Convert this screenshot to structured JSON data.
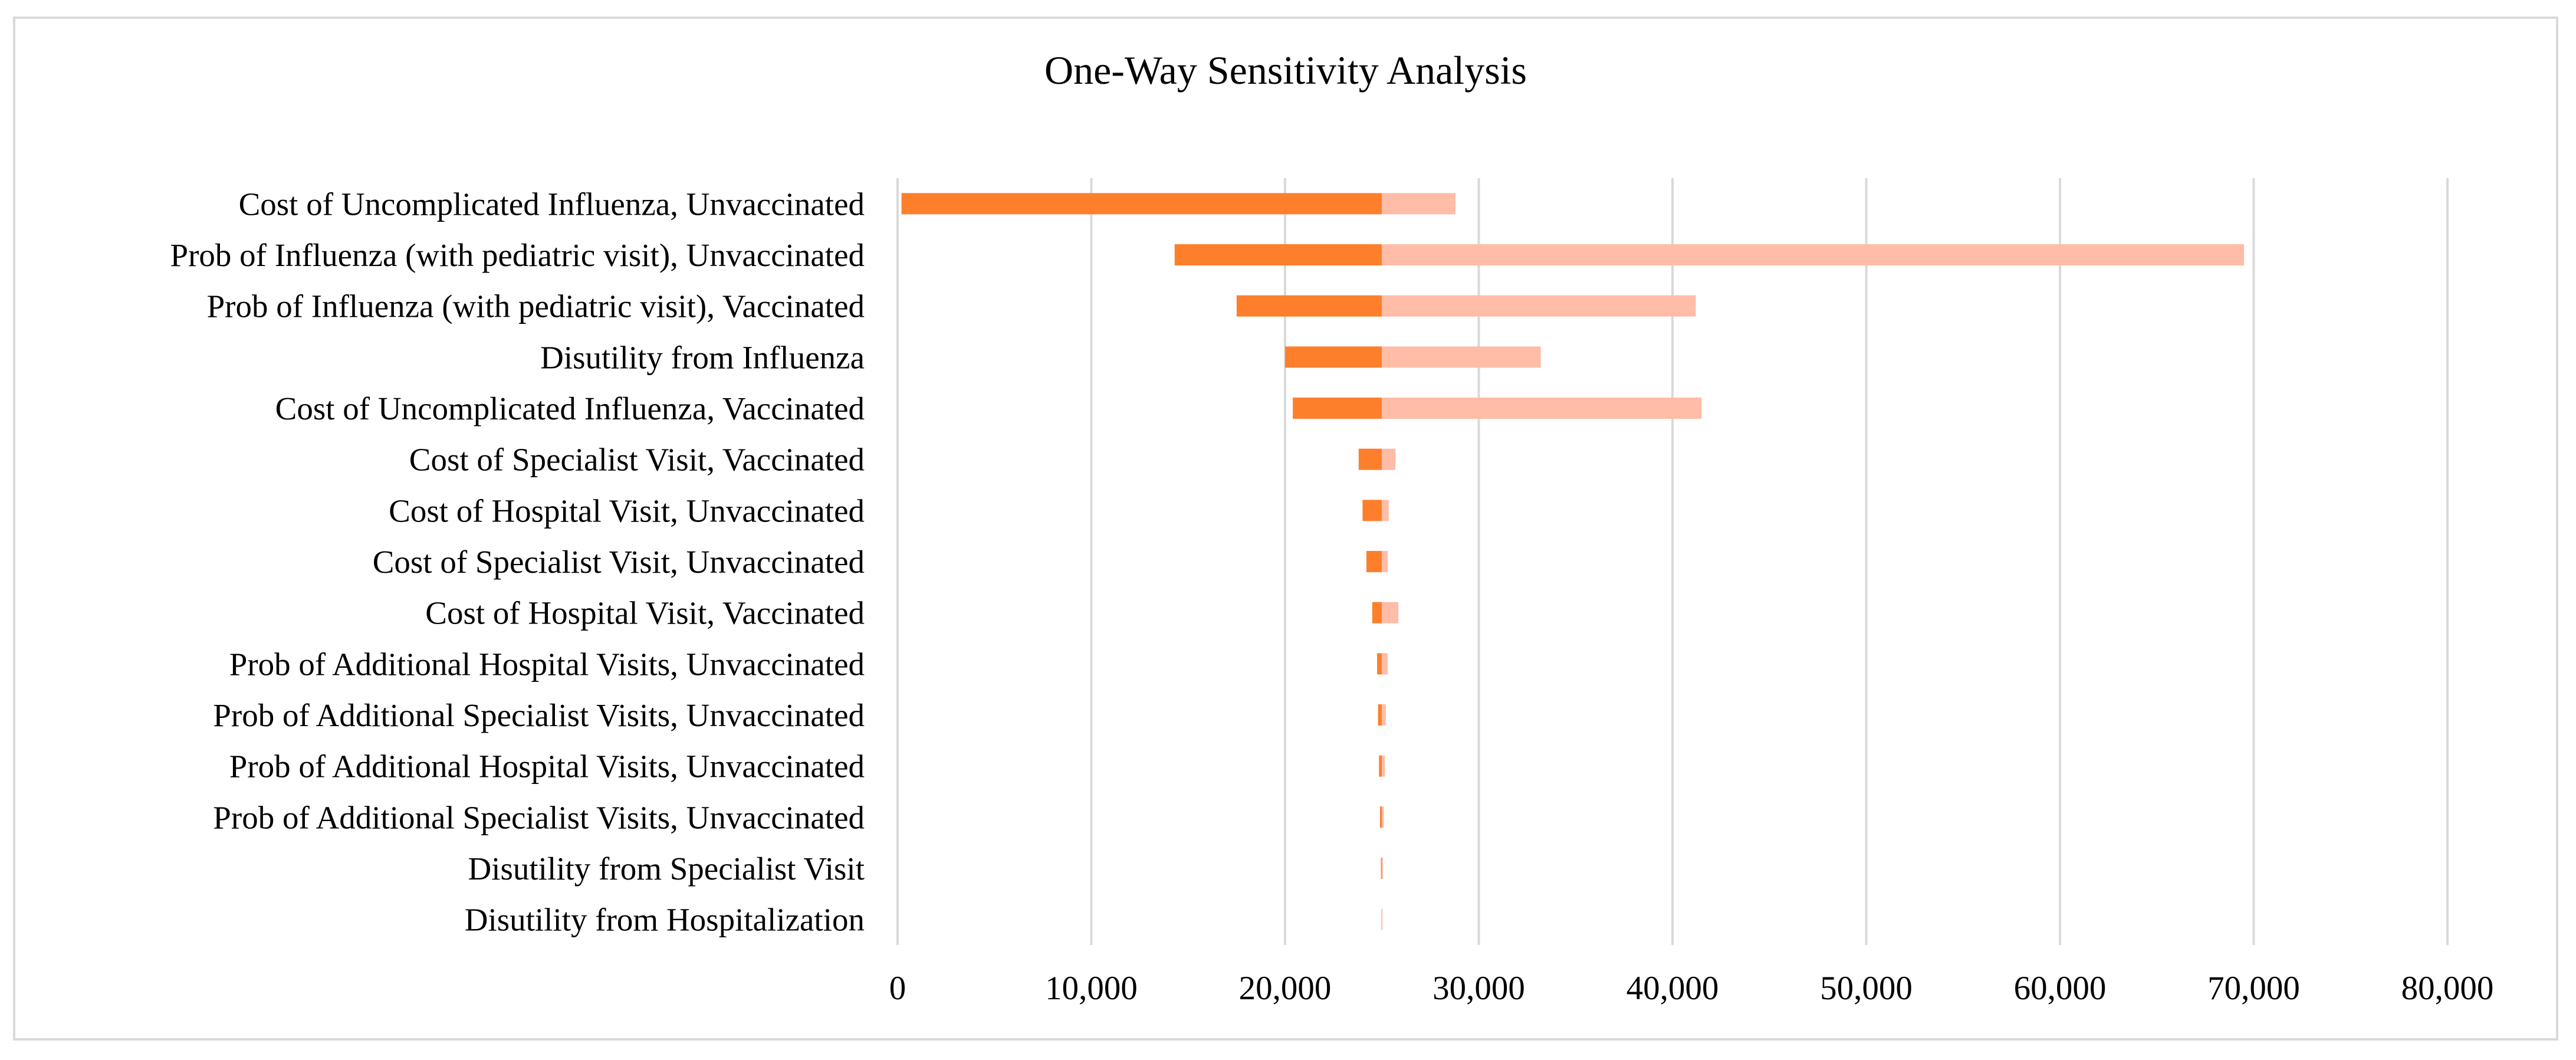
{
  "chart_data": {
    "type": "bar",
    "orientation": "horizontal",
    "variant": "tornado",
    "title": "One-Way Sensitivity Analysis",
    "xlabel": "",
    "ylabel": "",
    "xlim": [
      0,
      80000
    ],
    "x_ticks": [
      0,
      10000,
      20000,
      30000,
      40000,
      50000,
      60000,
      70000,
      80000
    ],
    "x_tick_labels": [
      "0",
      "10,000",
      "20,000",
      "30,000",
      "40,000",
      "50,000",
      "60,000",
      "70,000",
      "80,000"
    ],
    "grid": true,
    "legend": "none",
    "base_value": 25000,
    "colors": {
      "low": "#fd7f2c",
      "high": "#ffbca6",
      "grid": "#d9d9d9",
      "border": "#d9d9d9",
      "text": "#000000"
    },
    "categories": [
      "Cost of Uncomplicated Influenza, Unvaccinated",
      "Prob of Influenza (with pediatric visit), Unvaccinated",
      "Prob of Influenza (with pediatric visit), Vaccinated",
      "Disutility from Influenza",
      "Cost of Uncomplicated Influenza, Vaccinated",
      "Cost of Specialist Visit, Vaccinated",
      "Cost of Hospital Visit, Unvaccinated",
      "Cost of Specialist Visit, Unvaccinated",
      "Cost of Hospital Visit, Vaccinated",
      "Prob of Additional Hospital Visits, Unvaccinated",
      "Prob of Additional Specialist Visits, Unvaccinated",
      "Prob of Additional Hospital Visits, Unvaccinated",
      "Prob of Additional Specialist Visits, Unvaccinated",
      "Disutility from Specialist Visit",
      "Disutility from Hospitalization"
    ],
    "series": [
      {
        "name": "Low",
        "color": "#fd7f2c",
        "values": [
          200,
          14300,
          17500,
          20000,
          20400,
          23800,
          24000,
          24200,
          24500,
          24750,
          24800,
          24850,
          24900,
          24950,
          24980
        ]
      },
      {
        "name": "High",
        "color": "#ffbca6",
        "values": [
          28800,
          69500,
          41200,
          33200,
          41500,
          25700,
          25350,
          25300,
          25850,
          25300,
          25200,
          25150,
          25100,
          25050,
          25030
        ]
      }
    ]
  }
}
